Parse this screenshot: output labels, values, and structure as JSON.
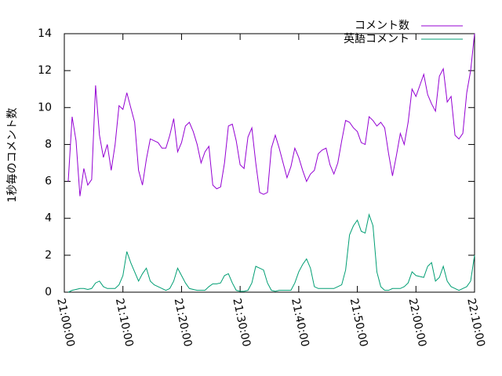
{
  "chart_data": {
    "type": "line",
    "ylabel": "1秒毎のコメント数",
    "x": [
      "21:00:40",
      "21:01:20",
      "21:02:00",
      "21:02:40",
      "21:03:20",
      "21:04:00",
      "21:04:40",
      "21:05:20",
      "21:06:00",
      "21:06:40",
      "21:07:20",
      "21:08:00",
      "21:08:40",
      "21:09:20",
      "21:10:00",
      "21:10:40",
      "21:11:20",
      "21:12:00",
      "21:12:40",
      "21:13:20",
      "21:14:00",
      "21:14:40",
      "21:15:20",
      "21:16:00",
      "21:16:40",
      "21:17:20",
      "21:18:00",
      "21:18:40",
      "21:19:20",
      "21:20:00",
      "21:20:40",
      "21:21:20",
      "21:22:00",
      "21:22:40",
      "21:23:20",
      "21:24:00",
      "21:24:40",
      "21:25:20",
      "21:26:00",
      "21:26:40",
      "21:27:20",
      "21:28:00",
      "21:28:40",
      "21:29:20",
      "21:30:00",
      "21:30:40",
      "21:31:20",
      "21:32:00",
      "21:32:40",
      "21:33:20",
      "21:34:00",
      "21:34:40",
      "21:35:20",
      "21:36:00",
      "21:36:40",
      "21:37:20",
      "21:38:00",
      "21:38:40",
      "21:39:20",
      "21:40:00",
      "21:40:40",
      "21:41:20",
      "21:42:00",
      "21:42:40",
      "21:43:20",
      "21:44:00",
      "21:44:40",
      "21:45:20",
      "21:46:00",
      "21:46:40",
      "21:47:20",
      "21:48:00",
      "21:48:40",
      "21:49:20",
      "21:50:00",
      "21:50:40",
      "21:51:20",
      "21:52:00",
      "21:52:40",
      "21:53:20",
      "21:54:00",
      "21:54:40",
      "21:55:20",
      "21:56:00",
      "21:56:40",
      "21:57:20",
      "21:58:00",
      "21:58:40",
      "21:59:20",
      "22:00:00",
      "22:00:40",
      "22:01:20",
      "22:02:00",
      "22:02:40",
      "22:03:20",
      "22:04:00",
      "22:04:40",
      "22:05:20",
      "22:06:00",
      "22:06:40",
      "22:07:20",
      "22:08:00",
      "22:08:40",
      "22:09:20",
      "22:10:00"
    ],
    "series": [
      {
        "name": "コメント数",
        "color": "#9400d3",
        "values": [
          6.0,
          9.5,
          8.2,
          5.2,
          6.7,
          5.8,
          6.1,
          11.2,
          8.5,
          7.3,
          8.0,
          6.6,
          8.0,
          10.1,
          9.9,
          10.8,
          10.0,
          9.2,
          6.6,
          5.8,
          7.2,
          8.3,
          8.2,
          8.1,
          7.8,
          7.8,
          8.5,
          9.4,
          7.6,
          8.1,
          9.0,
          9.2,
          8.7,
          8.0,
          7.0,
          7.6,
          7.9,
          5.8,
          5.6,
          5.7,
          7.0,
          9.0,
          9.1,
          8.2,
          6.9,
          6.7,
          8.4,
          8.9,
          7.0,
          5.4,
          5.3,
          5.4,
          7.8,
          8.5,
          7.8,
          7.0,
          6.2,
          6.8,
          7.8,
          7.3,
          6.6,
          6.0,
          6.4,
          6.6,
          7.5,
          7.7,
          7.8,
          6.9,
          6.4,
          7.0,
          8.2,
          9.3,
          9.2,
          8.9,
          8.7,
          8.1,
          8.0,
          9.5,
          9.3,
          9.0,
          9.2,
          8.9,
          7.5,
          6.3,
          7.4,
          8.6,
          8.0,
          9.2,
          11.0,
          10.6,
          11.2,
          11.8,
          10.7,
          10.2,
          9.8,
          11.7,
          12.1,
          10.3,
          10.6,
          8.5,
          8.3,
          8.6,
          10.8,
          12.0,
          14.0
        ]
      },
      {
        "name": "英語コメント",
        "color": "#009e73",
        "values": [
          0,
          0.1,
          0.15,
          0.2,
          0.2,
          0.15,
          0.2,
          0.5,
          0.6,
          0.3,
          0.2,
          0.2,
          0.2,
          0.4,
          0.9,
          2.2,
          1.6,
          1.1,
          0.6,
          1.0,
          1.3,
          0.6,
          0.4,
          0.3,
          0.2,
          0.1,
          0.2,
          0.6,
          1.3,
          0.9,
          0.5,
          0.2,
          0.15,
          0.1,
          0.1,
          0.1,
          0.3,
          0.45,
          0.45,
          0.5,
          0.9,
          1.0,
          0.5,
          0.1,
          0.05,
          0.05,
          0.1,
          0.5,
          1.4,
          1.3,
          1.2,
          0.5,
          0.1,
          0.05,
          0.1,
          0.1,
          0.1,
          0.1,
          0.5,
          1.1,
          1.5,
          1.8,
          1.3,
          0.3,
          0.2,
          0.2,
          0.2,
          0.2,
          0.2,
          0.3,
          0.4,
          1.2,
          3.1,
          3.6,
          3.9,
          3.3,
          3.2,
          4.2,
          3.6,
          1.1,
          0.3,
          0.1,
          0.1,
          0.2,
          0.2,
          0.2,
          0.3,
          0.5,
          1.1,
          0.9,
          0.85,
          0.8,
          1.4,
          1.6,
          0.6,
          0.8,
          1.4,
          0.6,
          0.3,
          0.2,
          0.1,
          0.2,
          0.3,
          0.6,
          2.0
        ]
      }
    ],
    "xlim": [
      "21:00:00",
      "22:10:00"
    ],
    "xticks": [
      "21:00:00",
      "21:10:00",
      "21:20:00",
      "21:30:00",
      "21:40:00",
      "21:50:00",
      "22:00:00",
      "22:10:00"
    ],
    "ylim": [
      0,
      14
    ],
    "yticks": [
      0,
      2,
      4,
      6,
      8,
      10,
      12,
      14
    ],
    "legend": "upper right"
  }
}
